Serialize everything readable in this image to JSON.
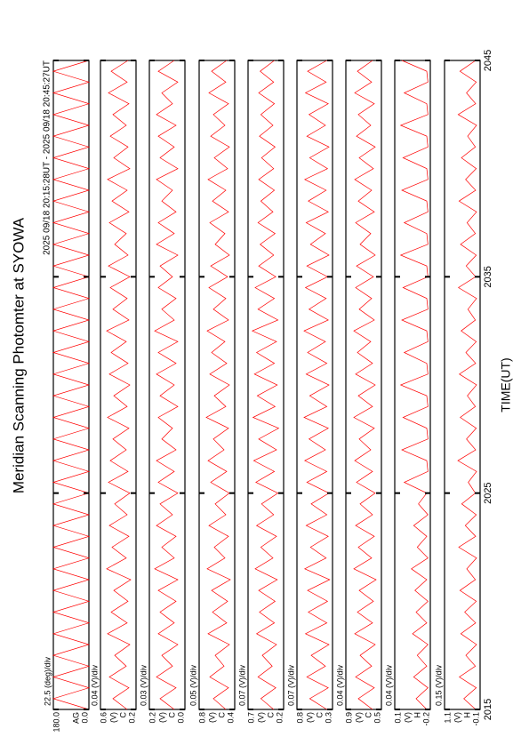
{
  "title": "Meridian Scanning Photomter at SYOWA",
  "subtitle": "2025 09/18 20:15:28UT - 2025 09/18 20:45:27UT",
  "time_axis": {
    "xlabel": "TIME(UT)",
    "xlim": [
      2015,
      2045
    ],
    "xticks": [
      2015,
      2025,
      2035,
      2045
    ],
    "x": [
      2015,
      2015.5,
      2016,
      2016.5,
      2017,
      2017.5,
      2018,
      2018.5,
      2019,
      2019.5,
      2020,
      2020.5,
      2021,
      2021.5,
      2022,
      2022.5,
      2023,
      2023.5,
      2024,
      2024.5,
      2025,
      2025.5,
      2026,
      2026.5,
      2027,
      2027.5,
      2028,
      2028.5,
      2029,
      2029.5,
      2030,
      2030.5,
      2031,
      2031.5,
      2032,
      2032.5,
      2033,
      2033.5,
      2034,
      2034.5,
      2035,
      2035.5,
      2036,
      2036.5,
      2037,
      2037.5,
      2038,
      2038.5,
      2039,
      2039.5,
      2040,
      2040.5,
      2041,
      2041.5,
      2042,
      2042.5,
      2043,
      2043.5,
      2044,
      2044.5,
      2045
    ]
  },
  "chart_data": [
    {
      "type": "line",
      "scale": "22.5 (deg)/div",
      "channel": "AG",
      "color": "#ff0000",
      "ylim": [
        0,
        180
      ],
      "yticks": [
        {
          "value": 0,
          "label": "0.0"
        },
        {
          "value": 180,
          "label": "180.0"
        }
      ],
      "values": [
        0,
        180,
        0,
        180,
        0,
        180,
        0,
        180,
        0,
        180,
        0,
        180,
        0,
        180,
        0,
        180,
        0,
        180,
        0,
        180,
        0,
        180,
        0,
        180,
        0,
        180,
        0,
        180,
        0,
        180,
        0,
        180,
        0,
        180,
        0,
        180,
        0,
        180,
        0,
        180,
        0,
        180,
        0,
        180,
        0,
        180,
        0,
        180,
        0,
        180,
        0,
        180,
        0,
        180,
        0,
        180,
        0,
        180,
        0,
        180,
        0
      ]
    },
    {
      "type": "line",
      "scale": "0.04 (V)/div",
      "unit": "(V)",
      "channel": "C",
      "color": "#ff0000",
      "ylim": [
        0.2,
        0.6
      ],
      "yticks": [
        0.2,
        0.6
      ],
      "values": [
        0.3,
        0.46,
        0.28,
        0.5,
        0.31,
        0.44,
        0.27,
        0.52,
        0.3,
        0.48,
        0.29,
        0.45,
        0.26,
        0.53,
        0.31,
        0.47,
        0.28,
        0.5,
        0.3,
        0.44,
        0.27,
        0.51,
        0.29,
        0.49,
        0.31,
        0.46,
        0.28,
        0.52,
        0.3,
        0.45,
        0.27,
        0.5,
        0.29,
        0.48,
        0.31,
        0.53,
        0.28,
        0.46,
        0.3,
        0.49,
        0.27,
        0.51,
        0.29,
        0.44,
        0.31,
        0.5,
        0.28,
        0.47,
        0.3,
        0.52,
        0.27,
        0.45,
        0.29,
        0.49,
        0.31,
        0.46,
        0.28,
        0.51,
        0.3,
        0.48,
        0.29
      ]
    },
    {
      "type": "line",
      "scale": "0.03 (V)/div",
      "unit": "(V)",
      "channel": "C",
      "color": "#ff0000",
      "ylim": [
        0.0,
        0.2
      ],
      "yticks": [
        {
          "value": 0,
          "label": "0.0"
        },
        0.2
      ],
      "values": [
        0.06,
        0.14,
        0.05,
        0.16,
        0.07,
        0.13,
        0.04,
        0.15,
        0.06,
        0.14,
        0.05,
        0.15,
        0.04,
        0.17,
        0.06,
        0.13,
        0.05,
        0.16,
        0.07,
        0.14,
        0.04,
        0.15,
        0.06,
        0.16,
        0.05,
        0.13,
        0.07,
        0.15,
        0.04,
        0.14,
        0.06,
        0.16,
        0.05,
        0.15,
        0.04,
        0.17,
        0.06,
        0.13,
        0.05,
        0.15,
        0.07,
        0.14,
        0.04,
        0.16,
        0.06,
        0.15,
        0.05,
        0.13,
        0.07,
        0.16,
        0.04,
        0.14,
        0.06,
        0.15,
        0.05,
        0.16,
        0.07,
        0.13,
        0.04,
        0.15,
        0.06
      ]
    },
    {
      "type": "line",
      "scale": "0.05 (V)/div",
      "unit": "(V)",
      "channel": "C",
      "color": "#ff0000",
      "ylim": [
        0.4,
        0.8
      ],
      "yticks": [
        0.4,
        0.8
      ],
      "values": [
        0.5,
        0.64,
        0.47,
        0.68,
        0.52,
        0.62,
        0.46,
        0.7,
        0.49,
        0.65,
        0.48,
        0.66,
        0.45,
        0.71,
        0.51,
        0.63,
        0.47,
        0.69,
        0.5,
        0.62,
        0.46,
        0.67,
        0.49,
        0.7,
        0.52,
        0.64,
        0.47,
        0.72,
        0.5,
        0.63,
        0.46,
        0.68,
        0.49,
        0.66,
        0.51,
        0.71,
        0.47,
        0.64,
        0.5,
        0.69,
        0.48,
        0.67,
        0.46,
        0.62,
        0.51,
        0.68,
        0.47,
        0.65,
        0.5,
        0.7,
        0.48,
        0.63,
        0.46,
        0.67,
        0.51,
        0.64,
        0.47,
        0.69,
        0.5,
        0.66,
        0.49
      ]
    },
    {
      "type": "line",
      "scale": "0.07 (V)/div",
      "unit": "(V)",
      "channel": "C",
      "color": "#ff0000",
      "ylim": [
        0.2,
        0.7
      ],
      "yticks": [
        0.2,
        0.7
      ],
      "values": [
        0.34,
        0.52,
        0.31,
        0.56,
        0.36,
        0.5,
        0.3,
        0.58,
        0.33,
        0.54,
        0.32,
        0.55,
        0.29,
        0.6,
        0.35,
        0.52,
        0.3,
        0.58,
        0.34,
        0.51,
        0.28,
        0.59,
        0.33,
        0.62,
        0.3,
        0.55,
        0.27,
        0.63,
        0.32,
        0.57,
        0.29,
        0.61,
        0.33,
        0.58,
        0.3,
        0.64,
        0.28,
        0.56,
        0.33,
        0.6,
        0.31,
        0.55,
        0.34,
        0.53,
        0.32,
        0.56,
        0.35,
        0.52,
        0.33,
        0.55,
        0.34,
        0.51,
        0.32,
        0.54,
        0.35,
        0.52,
        0.33,
        0.55,
        0.34,
        0.53,
        0.33
      ]
    },
    {
      "type": "line",
      "scale": "0.07 (V)/div",
      "unit": "(V)",
      "channel": "C",
      "color": "#ff0000",
      "ylim": [
        0.3,
        0.8
      ],
      "yticks": [
        0.3,
        0.8
      ],
      "values": [
        0.38,
        0.62,
        0.36,
        0.66,
        0.4,
        0.6,
        0.35,
        0.68,
        0.38,
        0.64,
        0.37,
        0.65,
        0.34,
        0.69,
        0.39,
        0.61,
        0.36,
        0.67,
        0.38,
        0.6,
        0.35,
        0.66,
        0.38,
        0.69,
        0.4,
        0.63,
        0.36,
        0.7,
        0.38,
        0.62,
        0.35,
        0.67,
        0.38,
        0.65,
        0.4,
        0.7,
        0.36,
        0.63,
        0.39,
        0.68,
        0.37,
        0.66,
        0.35,
        0.61,
        0.4,
        0.67,
        0.36,
        0.64,
        0.39,
        0.69,
        0.37,
        0.62,
        0.35,
        0.66,
        0.4,
        0.63,
        0.36,
        0.68,
        0.39,
        0.65,
        0.38
      ]
    },
    {
      "type": "line",
      "scale": "0.04 (V)/div",
      "unit": "(V)",
      "channel": "C",
      "color": "#ff0000",
      "ylim": [
        0.5,
        0.9
      ],
      "yticks": [
        0.5,
        0.9
      ],
      "values": [
        0.6,
        0.76,
        0.58,
        0.79,
        0.61,
        0.74,
        0.57,
        0.8,
        0.6,
        0.77,
        0.59,
        0.75,
        0.56,
        0.81,
        0.61,
        0.76,
        0.58,
        0.79,
        0.6,
        0.74,
        0.57,
        0.78,
        0.6,
        0.8,
        0.62,
        0.75,
        0.58,
        0.81,
        0.6,
        0.76,
        0.57,
        0.79,
        0.6,
        0.77,
        0.62,
        0.81,
        0.58,
        0.75,
        0.61,
        0.79,
        0.59,
        0.78,
        0.57,
        0.74,
        0.62,
        0.79,
        0.58,
        0.76,
        0.61,
        0.8,
        0.59,
        0.75,
        0.57,
        0.78,
        0.62,
        0.76,
        0.58,
        0.8,
        0.61,
        0.77,
        0.6
      ]
    },
    {
      "type": "line",
      "scale": "0.04 (V)/div",
      "unit": "(V)",
      "channel": "H",
      "color": "#ff0000",
      "ylim": [
        -0.2,
        0.1
      ],
      "yticks": [
        -0.2,
        0.1
      ],
      "values": [
        -0.17,
        -0.08,
        -0.18,
        -0.06,
        -0.17,
        -0.09,
        -0.18,
        -0.05,
        -0.17,
        -0.08,
        -0.18,
        -0.07,
        -0.17,
        -0.04,
        -0.18,
        -0.09,
        -0.17,
        -0.06,
        -0.18,
        -0.1,
        -0.17,
        0.02,
        -0.18,
        -0.17,
        0.04,
        -0.18,
        -0.17,
        0.03,
        -0.18,
        -0.17,
        0.05,
        -0.18,
        -0.17,
        0.02,
        -0.18,
        -0.17,
        0.04,
        -0.18,
        -0.17,
        0.03,
        -0.18,
        -0.17,
        0.05,
        -0.18,
        -0.17,
        0.02,
        -0.18,
        -0.17,
        0.04,
        -0.18,
        -0.17,
        0.03,
        -0.18,
        -0.17,
        0.05,
        -0.18,
        -0.17,
        0.02,
        -0.18,
        -0.17,
        0.04
      ]
    },
    {
      "type": "line",
      "scale": "0.15 (V)/div",
      "unit": "(V)",
      "channel": "H",
      "color": "#ff0000",
      "ylim": [
        -0.1,
        1.1
      ],
      "yticks": [
        -0.1,
        1.1
      ],
      "values": [
        0.05,
        0.45,
        0.03,
        0.6,
        0.06,
        0.38,
        0.02,
        0.55,
        0.05,
        0.42,
        0.03,
        0.58,
        0.06,
        0.35,
        0.02,
        0.62,
        0.05,
        0.4,
        0.03,
        0.52,
        0.06,
        0.3,
        0.02,
        0.65,
        0.05,
        0.36,
        0.03,
        0.57,
        0.06,
        0.33,
        0.02,
        0.6,
        0.05,
        0.38,
        0.03,
        0.54,
        0.06,
        0.31,
        0.02,
        0.63,
        0.05,
        0.37,
        0.03,
        0.56,
        0.06,
        0.34,
        0.02,
        0.61,
        0.05,
        0.39,
        0.03,
        0.53,
        0.06,
        0.32,
        0.02,
        0.64,
        0.05,
        0.36,
        0.03,
        0.58,
        0.05
      ]
    }
  ]
}
